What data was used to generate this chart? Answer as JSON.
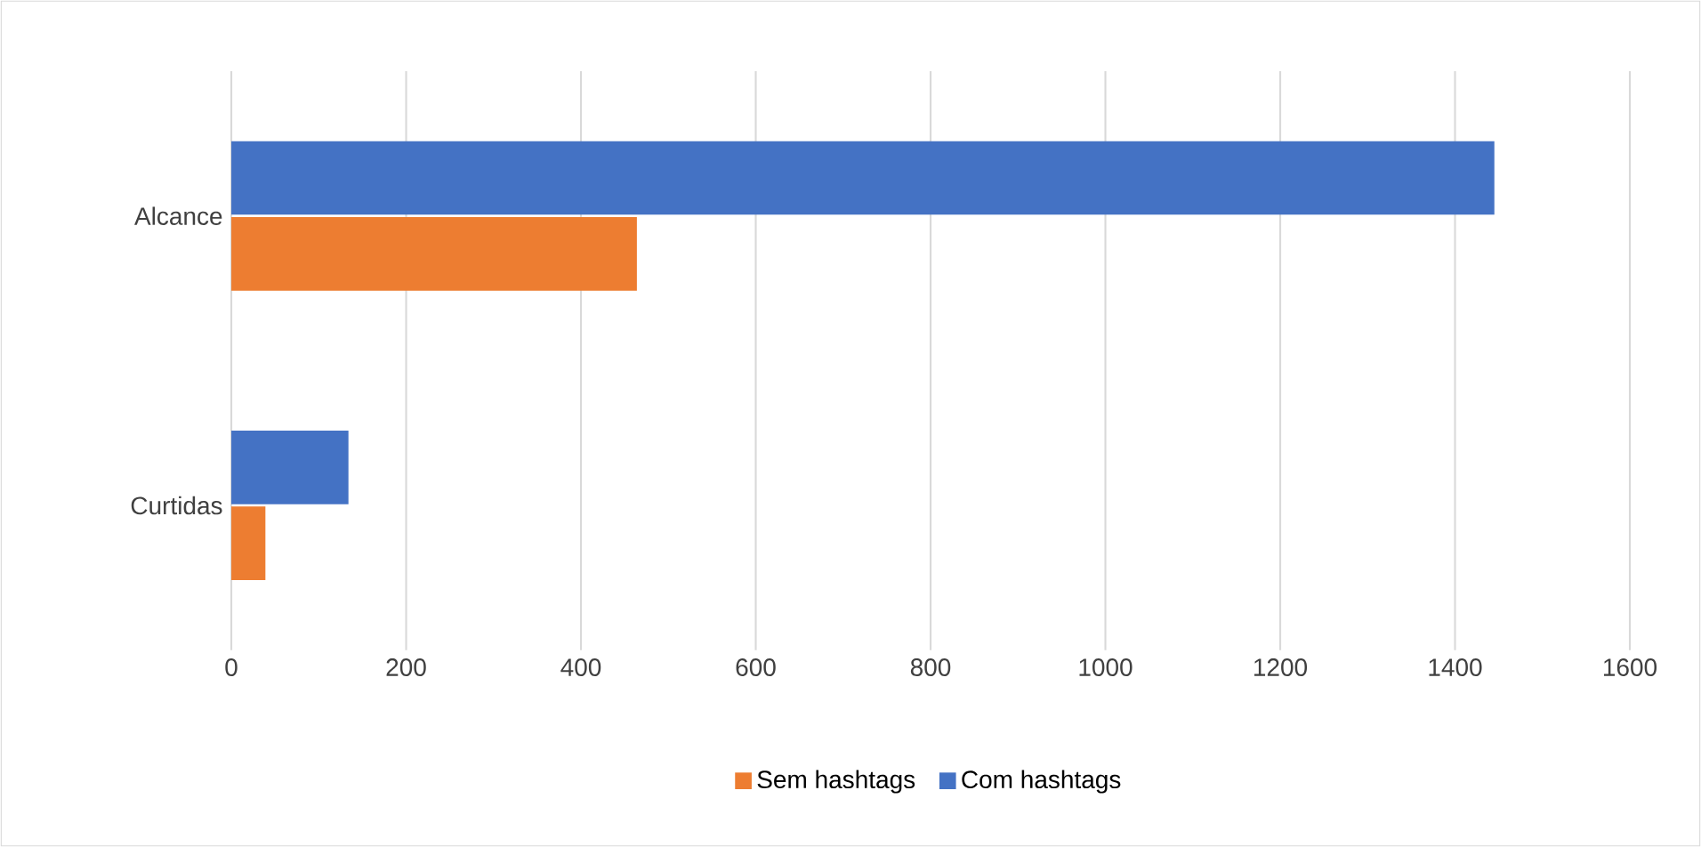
{
  "chart_data": {
    "type": "bar",
    "orientation": "horizontal",
    "categories": [
      "Alcance",
      "Curtidas"
    ],
    "series": [
      {
        "name": "Sem hashtags",
        "color": "#ed7d31",
        "values": [
          464,
          39
        ]
      },
      {
        "name": "Com hashtags",
        "color": "#4472c4",
        "values": [
          1445,
          134
        ]
      }
    ],
    "xlim": [
      0,
      1600
    ],
    "xticks": [
      0,
      200,
      400,
      600,
      800,
      1000,
      1200,
      1400,
      1600
    ],
    "grid": "x",
    "legend": "bottom"
  }
}
